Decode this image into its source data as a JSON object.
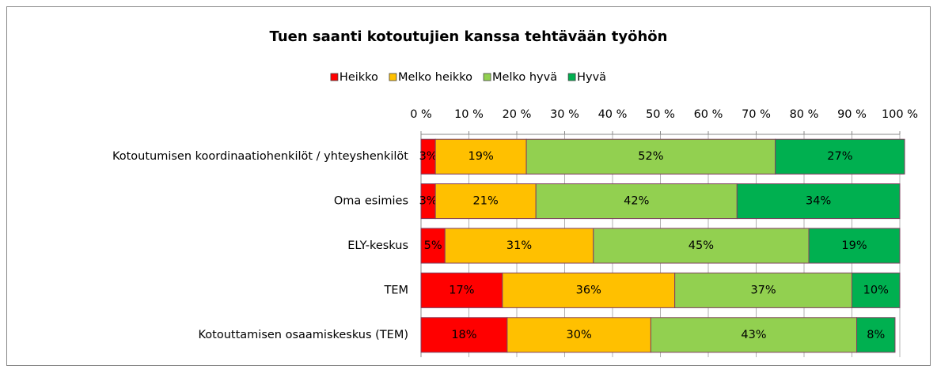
{
  "chart_data": {
    "type": "stacked-barh",
    "title": "Tuen saanti kotoutujien kanssa tehtävään työhön",
    "categories": [
      "Kotoutumisen koordinaatiohenkilöt / yhteyshenkilöt",
      "Oma esimies",
      "ELY-keskus",
      "TEM",
      "Kotouttamisen osaamiskeskus (TEM)"
    ],
    "series": [
      {
        "name": "Heikko",
        "color": "#ff0000",
        "values": [
          3,
          3,
          5,
          17,
          18
        ],
        "value_labels": [
          "3%",
          "3%",
          "5%",
          "17%",
          "18%"
        ]
      },
      {
        "name": "Melko heikko",
        "color": "#ffc000",
        "values": [
          19,
          21,
          31,
          36,
          30
        ],
        "value_labels": [
          "19%",
          "21%",
          "31%",
          "36%",
          "30%"
        ]
      },
      {
        "name": "Melko hyvä",
        "color": "#92d050",
        "values": [
          52,
          42,
          45,
          37,
          43
        ],
        "value_labels": [
          "52%",
          "42%",
          "45%",
          "37%",
          "43%"
        ]
      },
      {
        "name": "Hyvä",
        "color": "#00b050",
        "values": [
          27,
          34,
          19,
          10,
          8
        ],
        "value_labels": [
          "27%",
          "34%",
          "19%",
          "10%",
          "8%"
        ]
      }
    ],
    "xlim": [
      0,
      100
    ],
    "xticks": [
      {
        "value": 0,
        "label": "0 %"
      },
      {
        "value": 10,
        "label": "10 %"
      },
      {
        "value": 20,
        "label": "20 %"
      },
      {
        "value": 30,
        "label": "30 %"
      },
      {
        "value": 40,
        "label": "40 %"
      },
      {
        "value": 50,
        "label": "50 %"
      },
      {
        "value": 60,
        "label": "60 %"
      },
      {
        "value": 70,
        "label": "70 %"
      },
      {
        "value": 80,
        "label": "80 %"
      },
      {
        "value": 90,
        "label": "90 %"
      },
      {
        "value": 100,
        "label": "100 %"
      }
    ],
    "grid": true,
    "legend": "top"
  }
}
